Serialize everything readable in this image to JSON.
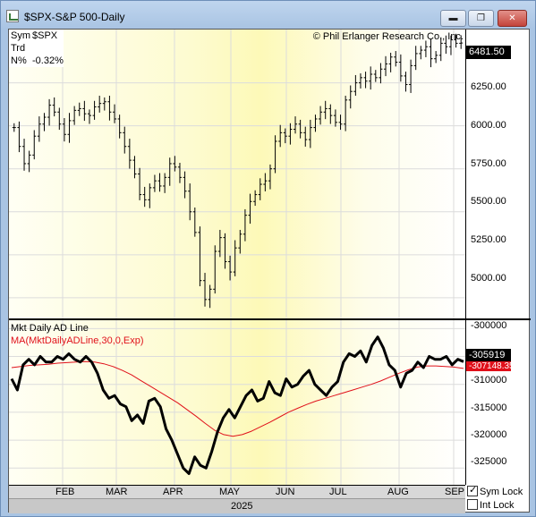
{
  "window": {
    "title": "$SPX-S&P 500-Daily",
    "min": "▬",
    "max": "❐",
    "close": "✕"
  },
  "info": {
    "sym_label": "Sym",
    "sym_value": "$SPX",
    "trd_label": "Trd",
    "trd_value": "",
    "n_label": "N%",
    "n_value": "-0.32%"
  },
  "copyright": "© Phil Erlanger Research Co., Inc.",
  "price_axis": {
    "ticks": [
      "6250.00",
      "6000.00",
      "5750.00",
      "5500.00",
      "5250.00",
      "5000.00"
    ],
    "last": "6481.50"
  },
  "indicator": {
    "title": "Mkt Daily AD Line",
    "ma_title": "MA(MktDailyADLine,30,0,Exp)",
    "ticks": [
      "-300000",
      "-305000",
      "-310000",
      "-315000",
      "-320000",
      "-325000"
    ],
    "last": "-305919",
    "ma_last": "-307148.3561"
  },
  "xaxis": {
    "months": [
      "FEB",
      "MAR",
      "APR",
      "MAY",
      "JUN",
      "JUL",
      "AUG",
      "SEP"
    ],
    "year": "2025"
  },
  "options": {
    "sym_lock": "Sym Lock",
    "int_lock": "Int Lock"
  },
  "colors": {
    "ma_line": "#e0101a",
    "price": "#000000",
    "last_tag": "#000000"
  },
  "chart_data": [
    {
      "type": "ohlc",
      "series": [
        {
          "name": "$SPX",
          "closes": [
            5990,
            5880,
            5780,
            5830,
            5940,
            6010,
            6050,
            6120,
            6080,
            6010,
            5950,
            6030,
            6090,
            6100,
            6070,
            6060,
            6110,
            6130,
            6140,
            6080,
            6040,
            5960,
            5880,
            5800,
            5720,
            5600,
            5570,
            5640,
            5680,
            5650,
            5700,
            5780,
            5760,
            5700,
            5620,
            5500,
            5380,
            5100,
            4990,
            5050,
            5270,
            5350,
            5210,
            5150,
            5290,
            5370,
            5480,
            5560,
            5600,
            5660,
            5680,
            5750,
            5910,
            5960,
            5940,
            5980,
            6010,
            5960,
            5920,
            5990,
            6040,
            6080,
            6100,
            6060,
            6020,
            6010,
            6150,
            6200,
            6250,
            6280,
            6260,
            6300,
            6280,
            6330,
            6360,
            6400,
            6370,
            6290,
            6240,
            6350,
            6420,
            6440,
            6460,
            6390,
            6410,
            6480,
            6460,
            6500,
            6480,
            6481.5
          ]
        }
      ],
      "ylim": [
        4880,
        6560
      ],
      "x_months": [
        "FEB",
        "MAR",
        "APR",
        "MAY",
        "JUN",
        "JUL",
        "AUG",
        "SEP"
      ]
    },
    {
      "type": "line",
      "series": [
        {
          "name": "Mkt Daily AD Line",
          "values": [
            -309000,
            -311000,
            -306500,
            -305500,
            -306500,
            -305000,
            -306000,
            -306000,
            -305000,
            -305500,
            -304500,
            -305500,
            -306000,
            -305000,
            -306000,
            -308000,
            -311000,
            -312500,
            -312000,
            -313500,
            -314000,
            -316500,
            -315500,
            -317000,
            -313000,
            -312500,
            -314000,
            -318000,
            -320000,
            -322500,
            -325000,
            -326000,
            -323000,
            -324500,
            -325000,
            -322000,
            -318500,
            -316000,
            -314500,
            -316000,
            -314000,
            -312000,
            -311000,
            -313000,
            -312500,
            -309500,
            -311500,
            -312000,
            -309000,
            -310500,
            -310000,
            -308500,
            -307500,
            -310000,
            -311000,
            -312000,
            -310500,
            -309500,
            -306000,
            -304500,
            -305000,
            -304000,
            -306000,
            -303000,
            -301500,
            -303500,
            -306500,
            -307500,
            -310500,
            -308000,
            -307500,
            -306000,
            -307000,
            -305000,
            -305500,
            -305500,
            -305000,
            -306500,
            -305500,
            -305919
          ]
        },
        {
          "name": "MA(MktDailyADLine,30,0,Exp)",
          "values": [
            -307000,
            -306800,
            -306600,
            -306500,
            -306400,
            -306200,
            -306100,
            -306000,
            -305900,
            -306000,
            -306300,
            -306800,
            -307500,
            -308300,
            -309300,
            -310300,
            -311300,
            -312300,
            -313300,
            -314500,
            -315700,
            -317000,
            -318200,
            -319000,
            -319300,
            -319000,
            -318400,
            -317600,
            -316800,
            -315900,
            -315000,
            -314300,
            -313600,
            -313000,
            -312500,
            -312000,
            -311500,
            -311000,
            -310500,
            -310000,
            -309400,
            -308700,
            -308000,
            -307400,
            -306900,
            -306700,
            -306700,
            -306800,
            -306900,
            -307148
          ]
        }
      ],
      "ylim": [
        -328000,
        -298500
      ]
    }
  ]
}
